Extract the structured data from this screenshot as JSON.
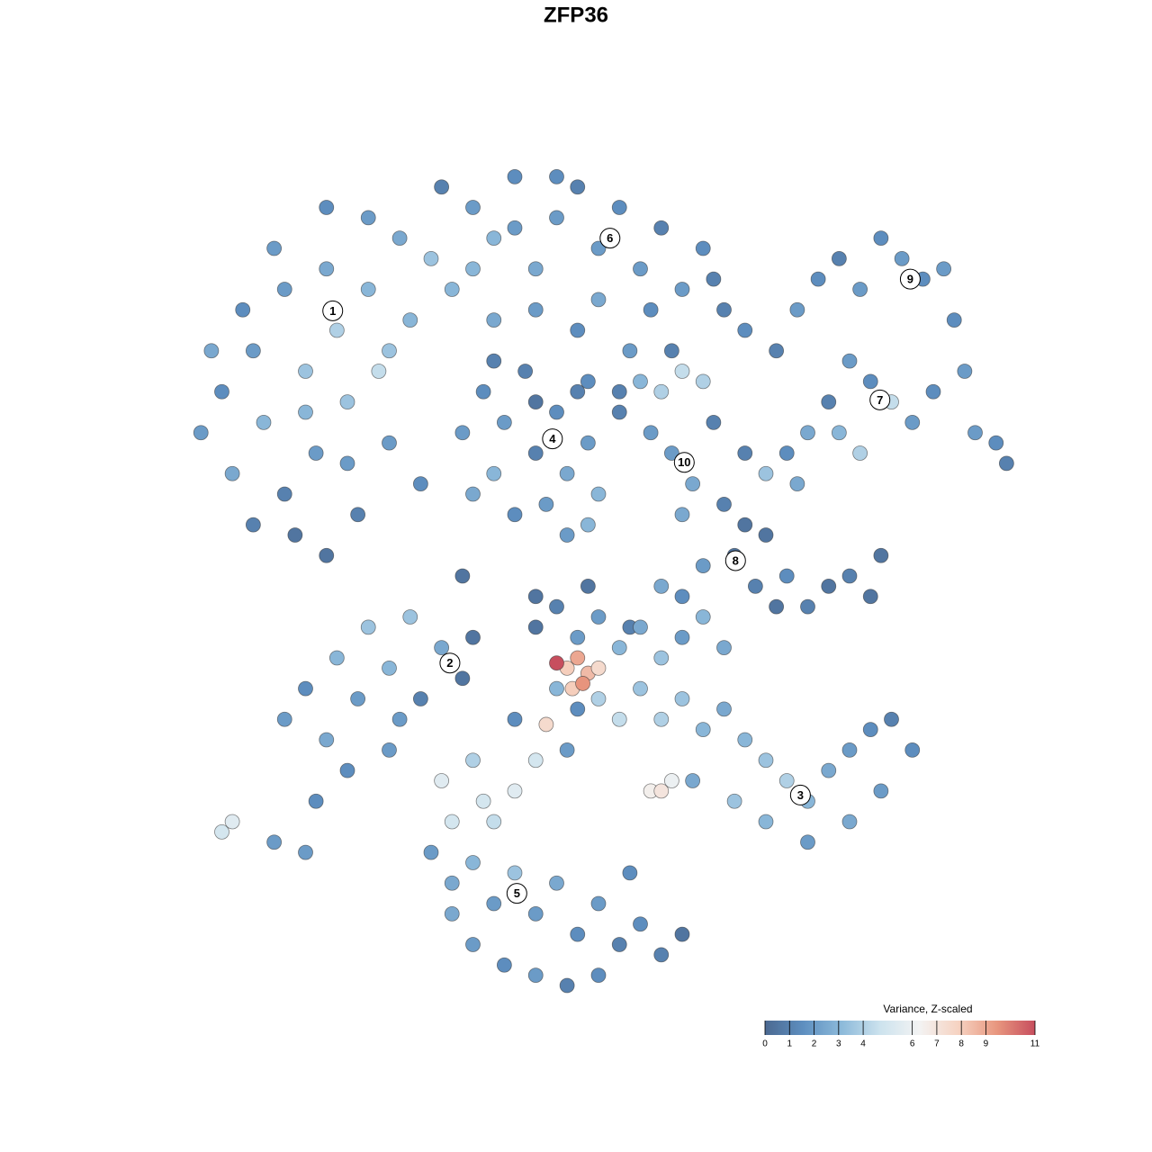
{
  "chart_data": {
    "type": "scatter",
    "title": "ZFP36",
    "xlim": [
      -40,
      40
    ],
    "ylim": [
      -40,
      40
    ],
    "x": [
      -38,
      -36,
      -35,
      -33,
      -32,
      -30,
      -30,
      -28,
      -27,
      -26,
      -25,
      -24,
      -23,
      -22,
      -21,
      -20,
      -19,
      -18,
      -17,
      -29,
      -34,
      -31,
      -26,
      -22,
      -37,
      -28,
      -24,
      -20,
      -33,
      -26,
      -15,
      -12,
      -10,
      -8,
      -6,
      -4,
      -2,
      0,
      2,
      4,
      6,
      8,
      10,
      12,
      -14,
      -10,
      -6,
      -2,
      3,
      7,
      -16,
      -12,
      -8,
      0,
      5,
      11,
      14,
      -1,
      2,
      -4,
      -13,
      -11,
      -10,
      -9,
      -7,
      -6,
      -5,
      -4,
      -3,
      -2,
      -1,
      0,
      -12,
      -8,
      -6,
      -3,
      -10,
      -1,
      2,
      4,
      6,
      8,
      10,
      5,
      7,
      9,
      8,
      11,
      17,
      19,
      21,
      23,
      25,
      27,
      29,
      31,
      33,
      34,
      35,
      32,
      30,
      28,
      26,
      24,
      22,
      20,
      18,
      36,
      38,
      39,
      16,
      19,
      23,
      25,
      14,
      12,
      13,
      14,
      15,
      16,
      18,
      20,
      22,
      24,
      26,
      27,
      17,
      10,
      6,
      8,
      3,
      -1,
      -6,
      -13,
      -30,
      -28,
      -26,
      -25,
      -23,
      -22,
      -20,
      -18,
      -17,
      -15,
      -13,
      -12,
      -24,
      -20,
      -36,
      -35,
      -31,
      -28,
      -27,
      -19,
      -6,
      -4,
      -2,
      0,
      2,
      4,
      6,
      8,
      10,
      12,
      -4,
      -2,
      0,
      2,
      4,
      6,
      8,
      10,
      12,
      14,
      16,
      18,
      20,
      22,
      24,
      26,
      28,
      30,
      27,
      24,
      20,
      16,
      13,
      9,
      5,
      6,
      7,
      -8,
      -6,
      -8,
      -11,
      -12,
      -10,
      -14,
      -15,
      -3,
      -3,
      -2,
      -4,
      -1,
      -2.5,
      0,
      -1.5,
      -5,
      -16,
      -14,
      -12,
      -10,
      -8,
      -6,
      -4,
      -2,
      0,
      2,
      4,
      6,
      8,
      -12,
      -9,
      -6,
      -3,
      0,
      -14,
      3
    ],
    "y": [
      14,
      18,
      10,
      22,
      15,
      28,
      8,
      20,
      12,
      30,
      24,
      17,
      6,
      28,
      20,
      13,
      33,
      25,
      9,
      4,
      26,
      32,
      36,
      35,
      22,
      16,
      11,
      22,
      5,
      2,
      38,
      36,
      33,
      39,
      30,
      35,
      38,
      32,
      36,
      30,
      34,
      28,
      32,
      26,
      28,
      25,
      26,
      24,
      22,
      22,
      31,
      30,
      34,
      27,
      26,
      29,
      24,
      19,
      18,
      39,
      14,
      18,
      10,
      15,
      20,
      12,
      7,
      16,
      10,
      18,
      13,
      8,
      8,
      6,
      17,
      4,
      21,
      5,
      16,
      19,
      18,
      20,
      19,
      14,
      12,
      9,
      6,
      15,
      22,
      26,
      29,
      31,
      28,
      33,
      31,
      29,
      30,
      25,
      20,
      18,
      15,
      17,
      19,
      21,
      17,
      14,
      12,
      14,
      13,
      11,
      10,
      9,
      14,
      12,
      12,
      7,
      2,
      5,
      -1,
      4,
      0,
      -3,
      -1,
      0,
      -2,
      2,
      -3,
      1,
      -1,
      -2,
      -5,
      -1,
      -2,
      0,
      -14,
      -11,
      -16,
      -8,
      -12,
      -5,
      -9,
      -4,
      -12,
      -7,
      -10,
      -6,
      -19,
      -17,
      -25,
      -24,
      -26,
      -27,
      -22,
      -14,
      -5,
      -3,
      -6,
      -4,
      -7,
      -5,
      -8,
      -6,
      -4,
      -7,
      -11,
      -13,
      -12,
      -14,
      -11,
      -14,
      -12,
      -15,
      -13,
      -16,
      -18,
      -20,
      -22,
      -19,
      -17,
      -15,
      -14,
      -17,
      -21,
      -24,
      -26,
      -24,
      -22,
      -20,
      -21,
      -21,
      -20,
      -14,
      -18,
      -21,
      -22,
      -18,
      -24,
      -24,
      -20,
      -17,
      -9,
      -8,
      -8.5,
      -9.5,
      -11,
      -9,
      -10.5,
      -14.5,
      -27,
      -30,
      -28,
      -32,
      -29,
      -33,
      -30,
      -35,
      -32,
      -36,
      -34,
      -37,
      -35,
      -36,
      -38,
      -39,
      -40,
      -39,
      -33,
      -29
    ],
    "values": [
      2,
      1.5,
      2.5,
      2,
      3,
      2,
      1,
      3.5,
      2,
      2.5,
      4,
      3.5,
      1,
      3,
      4.5,
      2,
      2.5,
      3,
      1.5,
      0.5,
      1.5,
      2,
      1.5,
      2,
      2.5,
      3,
      2,
      3.5,
      1,
      0.5,
      1,
      2,
      3,
      1.5,
      2.5,
      2,
      1,
      2,
      1.5,
      2,
      1,
      2,
      1.5,
      1,
      3,
      2.5,
      2,
      1.5,
      2,
      1,
      3.5,
      3,
      2,
      2.5,
      1.5,
      1,
      1.5,
      1.5,
      1,
      1.5,
      2,
      1.5,
      3,
      2,
      1,
      1,
      2,
      1.5,
      2.5,
      1,
      2,
      3,
      2.5,
      1.5,
      0.5,
      2,
      1,
      3,
      1,
      3,
      4,
      4.5,
      4,
      2,
      2,
      2.5,
      2.5,
      1,
      1,
      2,
      1.5,
      1,
      2,
      1.5,
      2,
      1.5,
      2,
      1.5,
      2,
      1.5,
      2,
      4.5,
      1.5,
      2,
      1,
      2.5,
      1.5,
      2,
      1.5,
      1,
      3.5,
      2.5,
      3,
      4,
      1,
      1,
      0.5,
      0.5,
      1,
      0.5,
      1.5,
      1,
      0.5,
      1,
      0.5,
      0.5,
      0.5,
      2,
      2.5,
      1.5,
      1,
      0.5,
      0.5,
      0.5,
      2,
      1.5,
      2.5,
      3,
      2,
      3.5,
      3,
      3.5,
      1,
      2.5,
      0.5,
      0.5,
      1.5,
      2,
      5,
      5.5,
      2,
      2,
      1.5,
      2,
      0.5,
      1,
      2,
      2,
      3,
      2.5,
      3.5,
      2,
      3,
      2.5,
      3,
      1.5,
      4,
      4.5,
      3.5,
      4,
      3.5,
      3,
      2.5,
      3,
      3.5,
      4,
      3,
      2.5,
      2,
      1.5,
      1,
      1.5,
      2,
      2.5,
      2,
      3,
      3.5,
      2.5,
      6.5,
      7,
      6,
      1.5,
      5,
      5.5,
      5,
      4,
      4.5,
      5,
      5.5,
      2,
      8,
      9,
      11,
      8.5,
      8,
      7.5,
      9.5,
      7.5,
      2,
      2.5,
      3,
      2,
      3.5,
      2,
      2.5,
      1.5,
      2,
      1,
      1.5,
      1,
      0.5,
      2,
      1.5,
      2,
      1,
      1.5,
      2.5,
      1.5
    ],
    "clusters": {
      "labels": [
        "1",
        "2",
        "3",
        "4",
        "5",
        "6",
        "7",
        "8",
        "9",
        "10"
      ],
      "x": [
        -25.4,
        -14.2,
        19.3,
        -4.4,
        -7.8,
        1.1,
        26.9,
        13.1,
        29.8,
        8.2
      ],
      "y": [
        25.9,
        -8.5,
        -21.4,
        13.4,
        -31,
        33,
        17.2,
        1.5,
        29,
        11.1
      ]
    },
    "colorbar_title": "Variance, Z-scaled",
    "clim": [
      0,
      11
    ],
    "colorbar_ticks": [
      0,
      1,
      2,
      3,
      4,
      6,
      7,
      8,
      9,
      11
    ],
    "colors": [
      "#4b6991",
      "#5e8fc0",
      "#8dbada",
      "#cde3ee",
      "#f3f3f3",
      "#f6d3c2",
      "#e8977f",
      "#c74e5e"
    ]
  }
}
